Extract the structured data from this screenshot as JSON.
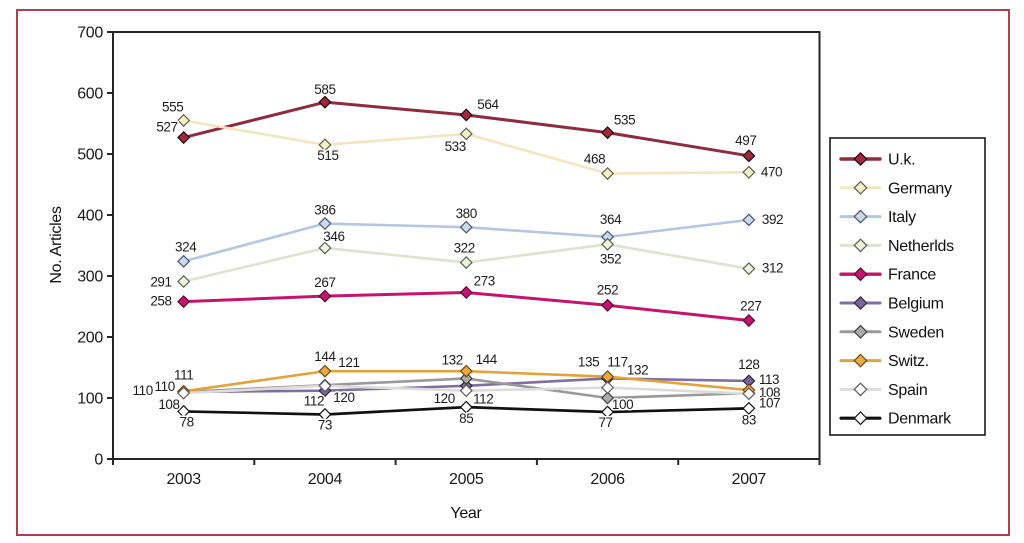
{
  "figure": {
    "border_color": "#ad4050",
    "background": "#ffffff"
  },
  "chart_data": {
    "type": "line",
    "title": "",
    "xlabel": "Year",
    "ylabel": "No. Articles",
    "categories": [
      "2003",
      "2004",
      "2005",
      "2006",
      "2007"
    ],
    "ylim": [
      0,
      700
    ],
    "ytick_labels": [
      "0",
      "100",
      "200",
      "300",
      "400",
      "500",
      "600",
      "700"
    ],
    "grid": "off",
    "legend_position": "right",
    "marker_shape": "diamond",
    "series": [
      {
        "name": "U.k.",
        "values": [
          527,
          585,
          564,
          535,
          497
        ],
        "color": "#8e2c3e",
        "marker_fill": "#9d2b3d",
        "marker_stroke": "#24070d",
        "width": 3
      },
      {
        "name": "Germany",
        "values": [
          555,
          515,
          533,
          468,
          470
        ],
        "color": "#f4e4c0",
        "marker_fill": "#f6f0c8",
        "marker_stroke": "#5e5c48",
        "width": 2.6
      },
      {
        "name": "Italy",
        "values": [
          324,
          386,
          380,
          364,
          392
        ],
        "color": "#b3c7e0",
        "marker_fill": "#cad9ec",
        "marker_stroke": "#45566e",
        "width": 2.6
      },
      {
        "name": "Netherlds",
        "values": [
          291,
          346,
          322,
          352,
          312
        ],
        "color": "#dde4cd",
        "marker_fill": "#edf1e1",
        "marker_stroke": "#55604a",
        "width": 2.6
      },
      {
        "name": "France",
        "values": [
          258,
          267,
          273,
          252,
          227
        ],
        "color": "#c6136e",
        "marker_fill": "#c3156f",
        "marker_stroke": "#57082f",
        "width": 3
      },
      {
        "name": "Belgium",
        "values": [
          110,
          112,
          120,
          132,
          128
        ],
        "color": "#80709f",
        "marker_fill": "#796697",
        "marker_stroke": "#2e2545",
        "width": 2.6
      },
      {
        "name": "Sweden",
        "values": [
          110,
          121,
          132,
          100,
          108
        ],
        "color": "#999999",
        "marker_fill": "#ababab",
        "marker_stroke": "#3d3d3d",
        "width": 2.6
      },
      {
        "name": "Switz.",
        "values": [
          111,
          144,
          144,
          135,
          113
        ],
        "color": "#e2a33d",
        "marker_fill": "#eba93f",
        "marker_stroke": "#6e4a0e",
        "width": 2.6
      },
      {
        "name": "Spain",
        "values": [
          108,
          120,
          112,
          117,
          107
        ],
        "color": "#dcdcdc",
        "marker_fill": "#ffffff",
        "marker_stroke": "#5a5a5a",
        "width": 2.6
      },
      {
        "name": "Denmark",
        "values": [
          78,
          73,
          85,
          77,
          83
        ],
        "color": "#111111",
        "marker_fill": "#ffffff",
        "marker_stroke": "#111111",
        "width": 2.7
      }
    ]
  }
}
